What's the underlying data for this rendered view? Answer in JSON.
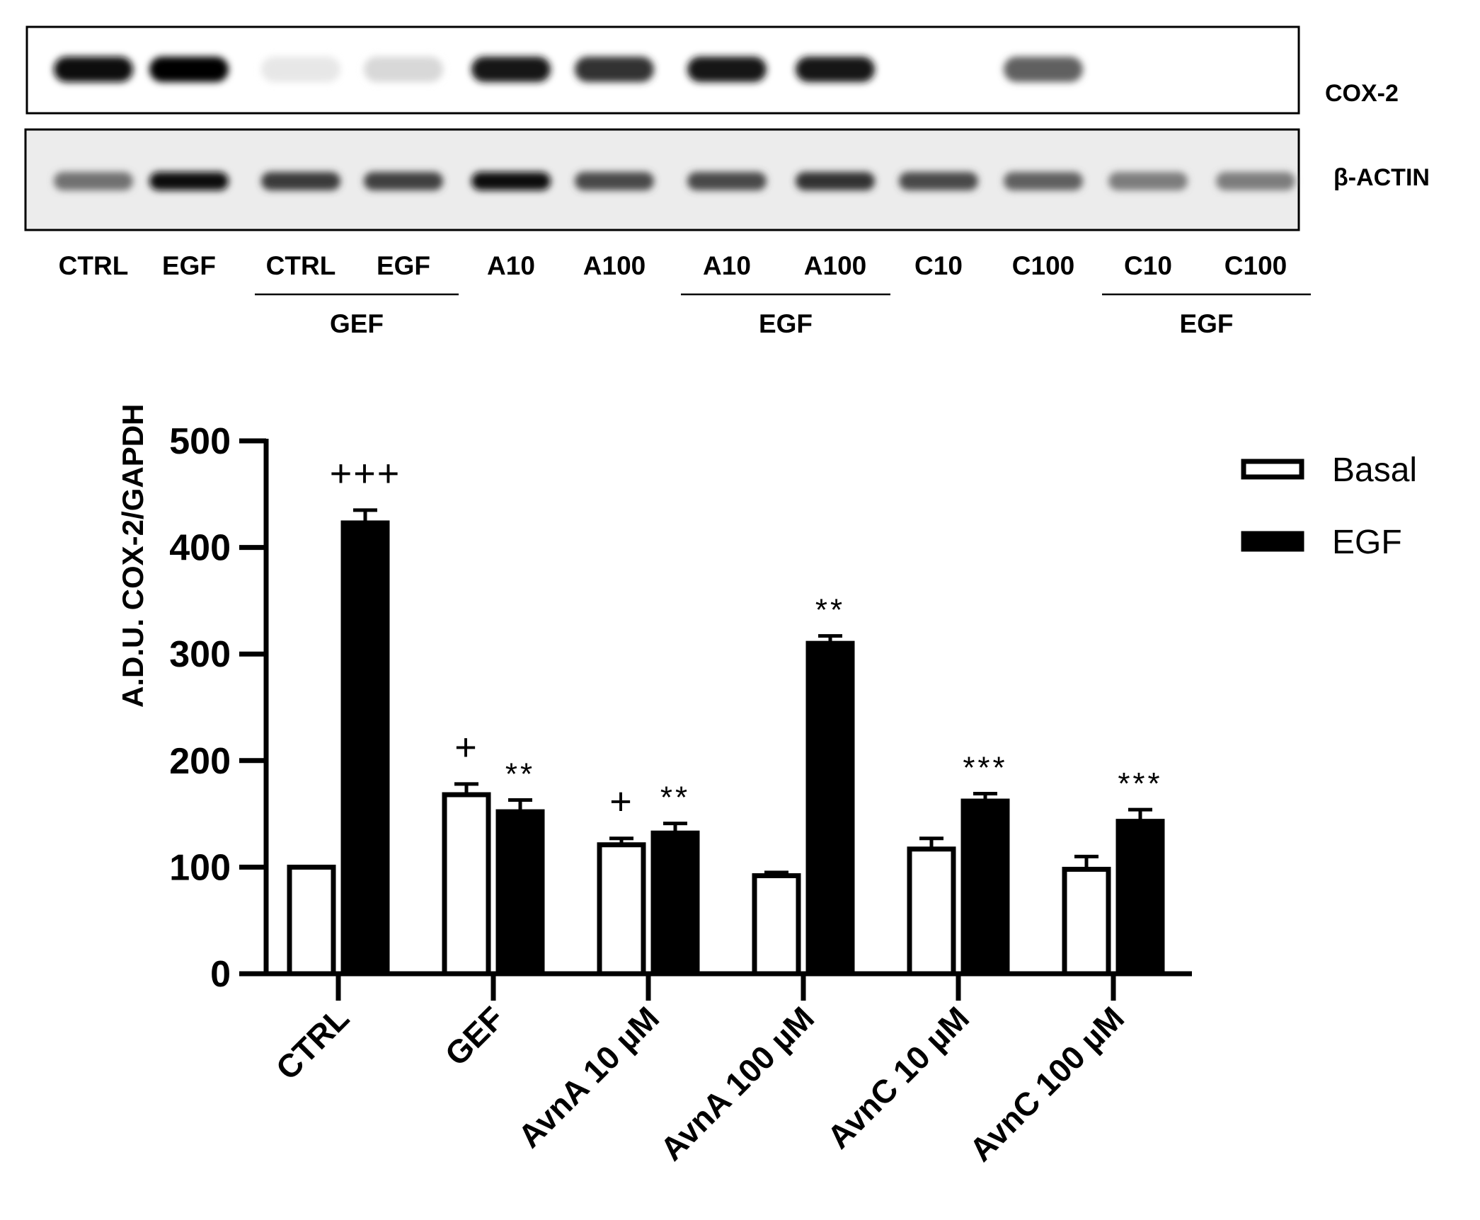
{
  "blot": {
    "rows": [
      {
        "label": "COX-2",
        "intensities": [
          0.95,
          1.0,
          0.06,
          0.12,
          0.92,
          0.82,
          0.92,
          0.92,
          0.0,
          0.62,
          0.0,
          0.0
        ]
      },
      {
        "label": "β-ACTIN",
        "intensities": [
          0.55,
          0.95,
          0.78,
          0.75,
          0.95,
          0.72,
          0.72,
          0.82,
          0.72,
          0.62,
          0.5,
          0.5
        ]
      }
    ],
    "lanes": [
      "CTRL",
      "EGF",
      "CTRL",
      "EGF",
      "A10",
      "A100",
      "A10",
      "A100",
      "C10",
      "C100",
      "C10",
      "C100"
    ],
    "groups": [
      {
        "label": "GEF",
        "lane_start": 2,
        "lane_end": 3
      },
      {
        "label": "EGF",
        "lane_start": 6,
        "lane_end": 7
      },
      {
        "label": "EGF",
        "lane_start": 10,
        "lane_end": 11
      }
    ]
  },
  "chart_data": {
    "type": "bar",
    "categories": [
      "CTRL",
      "GEF",
      "AvnA 10 µM",
      "AvnA 100 µM",
      "AvnC 10 µM",
      "AvnC 100 µM"
    ],
    "series": [
      {
        "name": "Basal",
        "fill": "#ffffff",
        "values": [
          100,
          168,
          121,
          92,
          117,
          98
        ],
        "errors": [
          0,
          10,
          6,
          3,
          10,
          12
        ],
        "annotations": [
          "",
          "+",
          "+",
          "",
          "",
          ""
        ]
      },
      {
        "name": "EGF",
        "fill": "#000000",
        "values": [
          423,
          152,
          132,
          310,
          162,
          143
        ],
        "errors": [
          12,
          11,
          9,
          7,
          7,
          11
        ],
        "annotations": [
          "+++",
          "**",
          "**",
          "**",
          "***",
          "***"
        ]
      }
    ],
    "ylabel": "A.D.U. COX-2/GAPDH",
    "xlabel": "",
    "ylim": [
      0,
      500
    ],
    "yticks": [
      0,
      100,
      200,
      300,
      400,
      500
    ],
    "legend_position": "top-right"
  }
}
